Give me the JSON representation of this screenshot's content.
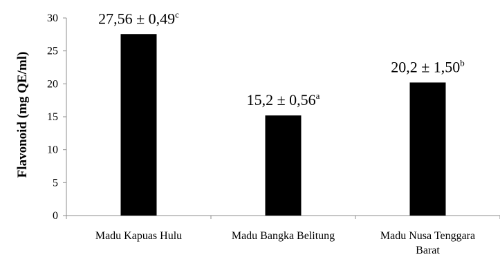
{
  "chart_data": {
    "type": "bar",
    "categories": [
      [
        "Madu Kapuas Hulu"
      ],
      [
        "Madu Bangka Belitung"
      ],
      [
        "Madu Nusa Tenggara",
        "Barat"
      ]
    ],
    "values": [
      27.56,
      15.2,
      20.2
    ],
    "data_labels": [
      {
        "text": "27,56 ± 0,49",
        "sup": "c"
      },
      {
        "text": "15,2 ± 0,56",
        "sup": "a"
      },
      {
        "text": "20,2 ± 1,50",
        "sup": "b"
      }
    ],
    "ylabel": "Flavonoid (mg QE/ml)",
    "xlabel": "",
    "ylim": [
      0,
      30
    ],
    "yticks": [
      "0",
      "5",
      "10",
      "15",
      "20",
      "25",
      "30"
    ],
    "grid": false,
    "bar_color": "#000000"
  }
}
